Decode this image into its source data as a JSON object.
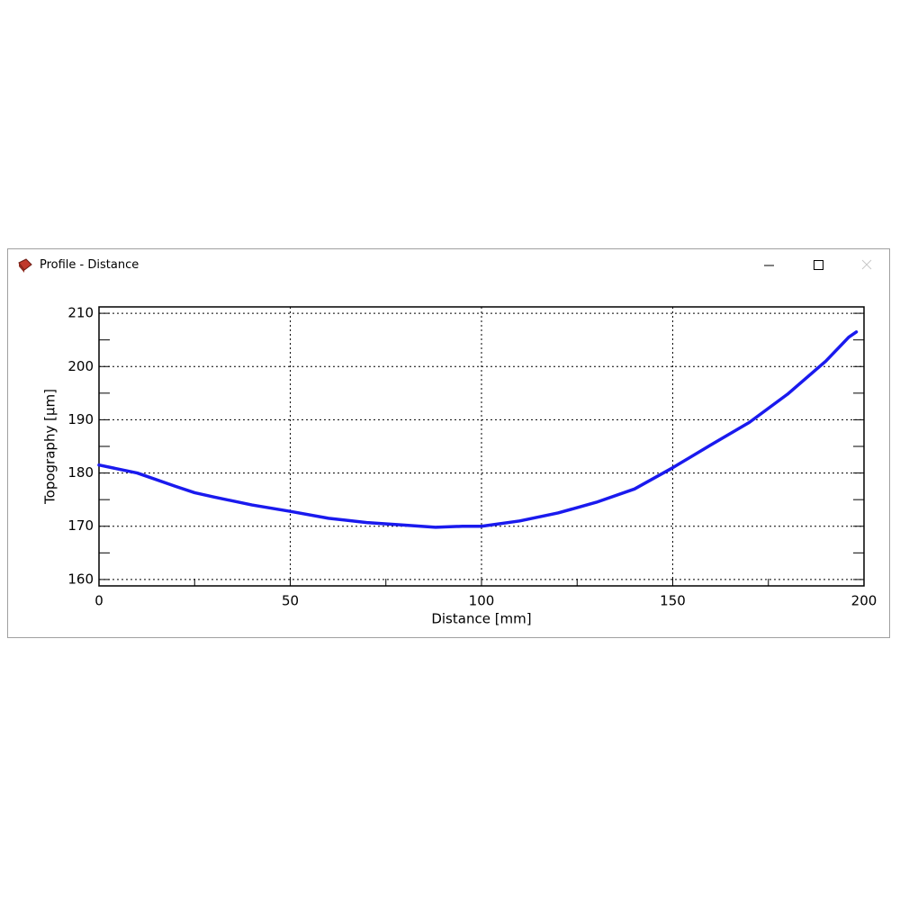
{
  "window": {
    "title": "Profile - Distance"
  },
  "chart_data": {
    "type": "line",
    "x_label": "Distance [mm]",
    "y_label": "Topography [μm]",
    "xlim": [
      0,
      200
    ],
    "ylim": [
      158.8,
      211.2
    ],
    "xticks": [
      0,
      50,
      100,
      150,
      200
    ],
    "yticks": [
      160,
      170,
      180,
      190,
      200,
      210
    ],
    "xminorticks": [
      25,
      75,
      125,
      175
    ],
    "yminorticks": [
      165,
      175,
      185,
      195,
      205
    ],
    "grid": true,
    "series": [
      {
        "color": "#1a1aee",
        "x": [
          0,
          10,
          20,
          25,
          30,
          40,
          50,
          60,
          70,
          80,
          88,
          95,
          100,
          110,
          120,
          130,
          140,
          150,
          160,
          170,
          180,
          190,
          196,
          198
        ],
        "values": [
          181.5,
          180,
          177.5,
          176.3,
          175.5,
          174,
          172.8,
          171.5,
          170.7,
          170.2,
          169.8,
          170,
          170,
          171,
          172.5,
          174.5,
          177,
          181,
          185.3,
          189.5,
          194.8,
          201,
          205.5,
          206.5
        ]
      }
    ]
  }
}
